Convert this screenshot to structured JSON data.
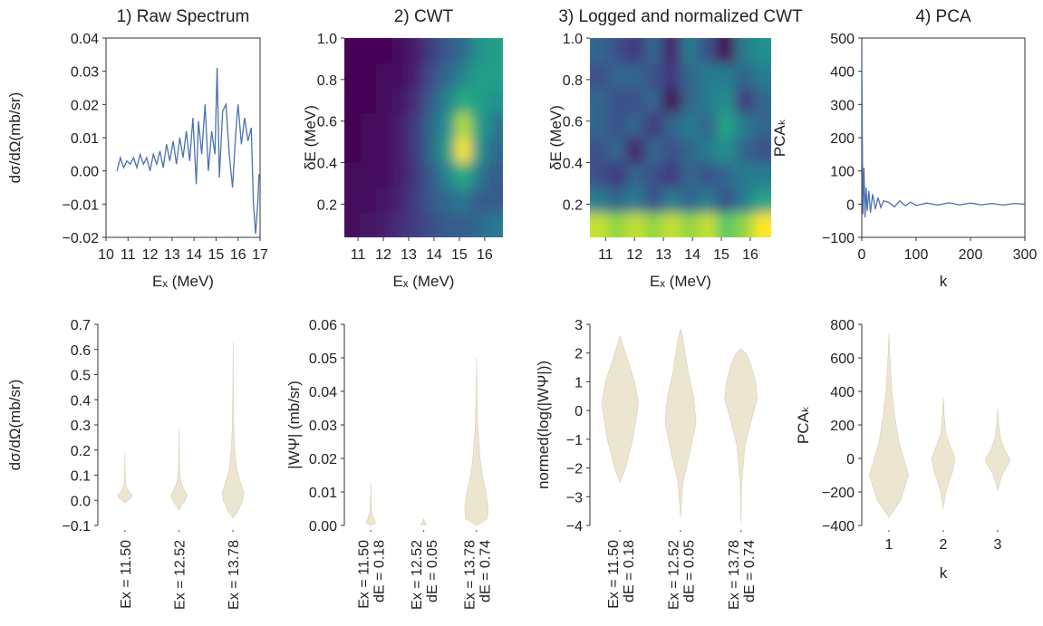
{
  "chart_data": [
    {
      "type": "line",
      "title": "1) Raw Spectrum",
      "xlabel": "Eₓ (MeV)",
      "ylabel": "dσ/dΩ(mb/sr)",
      "color": "#4c72b0",
      "xlim": [
        10,
        17
      ],
      "xticks": [
        10,
        11,
        12,
        13,
        14,
        15,
        16,
        17
      ],
      "ylim": [
        -0.02,
        0.04
      ],
      "yticks": [
        {
          "value": -0.02,
          "label": "−0.02"
        },
        {
          "value": -0.01,
          "label": "−0.01"
        },
        {
          "value": 0,
          "label": "0.00"
        },
        0.01,
        0.02,
        0.03,
        0.04
      ],
      "x": [
        10.5,
        10.65,
        10.8,
        10.95,
        11.1,
        11.25,
        11.4,
        11.55,
        11.7,
        11.85,
        12.0,
        12.15,
        12.3,
        12.45,
        12.6,
        12.75,
        12.9,
        13.05,
        13.2,
        13.35,
        13.5,
        13.65,
        13.8,
        13.95,
        14.1,
        14.2,
        14.35,
        14.5,
        14.65,
        14.8,
        14.95,
        15.05,
        15.15,
        15.3,
        15.45,
        15.6,
        15.75,
        15.9,
        16.0,
        16.15,
        16.3,
        16.45,
        16.6,
        16.7,
        16.8,
        16.9,
        16.95
      ],
      "values": [
        0.0,
        0.004,
        0.001,
        0.003,
        0.002,
        0.004,
        0.001,
        0.005,
        0.002,
        0.004,
        0.0,
        0.005,
        0.002,
        0.006,
        0.001,
        0.008,
        0.003,
        0.009,
        0.002,
        0.01,
        0.004,
        0.012,
        0.003,
        0.016,
        -0.004,
        0.015,
        0.005,
        0.02,
        0.0,
        0.012,
        0.005,
        0.031,
        -0.002,
        0.018,
        0.02,
        0.005,
        -0.005,
        0.012,
        0.02,
        0.008,
        0.016,
        0.009,
        0.013,
        -0.01,
        -0.019,
        -0.009,
        -0.001
      ]
    },
    {
      "type": "heatmap",
      "title": "2) CWT",
      "xlabel": "Eₓ (MeV)",
      "ylabel": "δE (MeV)",
      "colormap": "viridis",
      "xlim": [
        10.46,
        16.72
      ],
      "xticks": [
        11,
        12,
        13,
        14,
        15,
        16
      ],
      "ylim": [
        0.04,
        1.0
      ],
      "yticks": [
        0.2,
        0.4,
        0.6,
        0.8,
        {
          "value": 1.0,
          "label": "1.0"
        }
      ],
      "z": [
        [
          0.05,
          0.08,
          0.1,
          0.15,
          0.2,
          0.25,
          0.3,
          0.3,
          0.35,
          0.4
        ],
        [
          0.05,
          0.06,
          0.08,
          0.12,
          0.2,
          0.3,
          0.35,
          0.4,
          0.3,
          0.3
        ],
        [
          0.05,
          0.05,
          0.07,
          0.1,
          0.18,
          0.3,
          0.45,
          0.6,
          0.4,
          0.3
        ],
        [
          0.04,
          0.05,
          0.06,
          0.1,
          0.2,
          0.35,
          0.55,
          0.95,
          0.5,
          0.35
        ],
        [
          0.04,
          0.05,
          0.06,
          0.1,
          0.2,
          0.35,
          0.5,
          0.85,
          0.55,
          0.4
        ],
        [
          0.04,
          0.04,
          0.05,
          0.08,
          0.15,
          0.3,
          0.45,
          0.6,
          0.55,
          0.5
        ],
        [
          0.03,
          0.04,
          0.05,
          0.07,
          0.12,
          0.25,
          0.35,
          0.45,
          0.55,
          0.55
        ],
        [
          0.03,
          0.03,
          0.04,
          0.06,
          0.1,
          0.2,
          0.3,
          0.35,
          0.5,
          0.55
        ]
      ]
    },
    {
      "type": "heatmap",
      "title": "3) Logged and normalized CWT",
      "xlabel": "Eₓ (MeV)",
      "ylabel": "δE (MeV)",
      "colormap": "viridis",
      "xlim": [
        10.46,
        16.72
      ],
      "xticks": [
        11,
        12,
        13,
        14,
        15,
        16
      ],
      "ylim": [
        0.04,
        1.0
      ],
      "yticks": [
        0.2,
        0.4,
        0.6,
        0.8,
        {
          "value": 1.0,
          "label": "1.0"
        }
      ],
      "z": [
        [
          0.9,
          0.85,
          0.9,
          0.85,
          0.9,
          0.85,
          0.9,
          0.8,
          0.85,
          0.95
        ],
        [
          0.6,
          0.55,
          0.6,
          0.5,
          0.6,
          0.55,
          0.6,
          0.5,
          0.6,
          0.7
        ],
        [
          0.5,
          0.45,
          0.55,
          0.5,
          0.45,
          0.55,
          0.5,
          0.55,
          0.6,
          0.6
        ],
        [
          0.5,
          0.55,
          0.4,
          0.55,
          0.5,
          0.55,
          0.6,
          0.65,
          0.55,
          0.5
        ],
        [
          0.55,
          0.5,
          0.55,
          0.45,
          0.55,
          0.6,
          0.55,
          0.7,
          0.6,
          0.55
        ],
        [
          0.55,
          0.5,
          0.5,
          0.55,
          0.35,
          0.55,
          0.6,
          0.65,
          0.45,
          0.55
        ],
        [
          0.5,
          0.55,
          0.55,
          0.5,
          0.45,
          0.55,
          0.6,
          0.6,
          0.55,
          0.6
        ],
        [
          0.55,
          0.5,
          0.45,
          0.55,
          0.4,
          0.6,
          0.5,
          0.35,
          0.6,
          0.65
        ]
      ]
    },
    {
      "type": "line",
      "title": "4) PCA",
      "xlabel": "k",
      "ylabel": "PCAₖ",
      "color": "#4c72b0",
      "xlim": [
        0,
        300
      ],
      "xticks": [
        0,
        100,
        200,
        300
      ],
      "ylim": [
        -100,
        500
      ],
      "yticks": [
        {
          "value": -100,
          "label": "−100"
        },
        0,
        100,
        200,
        300,
        400,
        500
      ],
      "x": [
        0,
        2,
        4,
        6,
        8,
        10,
        13,
        16,
        20,
        25,
        30,
        35,
        40,
        50,
        60,
        70,
        80,
        90,
        100,
        120,
        140,
        160,
        180,
        200,
        220,
        240,
        260,
        280,
        300
      ],
      "values": [
        450,
        -30,
        110,
        -40,
        50,
        -20,
        40,
        -25,
        30,
        -15,
        20,
        -10,
        10,
        5,
        -8,
        10,
        -5,
        6,
        -4,
        3,
        -3,
        4,
        -2,
        3,
        -2,
        2,
        -3,
        2,
        0
      ]
    },
    {
      "type": "violin",
      "ylabel": "dσ/dΩ(mb/sr)",
      "color": "#ece5d0",
      "ylim": [
        -0.1,
        0.7
      ],
      "yticks": [
        {
          "value": -0.1,
          "label": "−0.1"
        },
        {
          "value": 0,
          "label": "0.0"
        },
        0.1,
        0.2,
        0.3,
        0.4,
        0.5,
        0.6,
        0.7
      ],
      "categories": [
        [
          "Ex = 11.50"
        ],
        [
          "Ex = 12.52"
        ],
        [
          "Ex = 13.78"
        ]
      ],
      "violins": [
        {
          "y": [
            -0.01,
            0.0,
            0.01,
            0.02,
            0.03,
            0.05,
            0.08,
            0.12,
            0.19
          ],
          "density": [
            0,
            0.11,
            0.26,
            0.3,
            0.19,
            0.06,
            0.02,
            0.01,
            0
          ]
        },
        {
          "y": [
            -0.04,
            -0.02,
            0.0,
            0.02,
            0.04,
            0.07,
            0.1,
            0.15,
            0.29
          ],
          "density": [
            0,
            0.11,
            0.26,
            0.33,
            0.22,
            0.09,
            0.04,
            0.015,
            0
          ]
        },
        {
          "y": [
            -0.07,
            -0.04,
            0.0,
            0.03,
            0.07,
            0.12,
            0.2,
            0.3,
            0.45,
            0.63
          ],
          "density": [
            0,
            0.22,
            0.4,
            0.45,
            0.31,
            0.16,
            0.07,
            0.03,
            0.01,
            0
          ]
        }
      ]
    },
    {
      "type": "violin",
      "ylabel": "|WΨ| (mb/sr)",
      "color": "#ece5d0",
      "ylim": [
        0,
        0.06
      ],
      "yticks": [
        {
          "value": 0,
          "label": "0.00"
        },
        0.01,
        0.02,
        0.03,
        0.04,
        0.05,
        0.06
      ],
      "categories": [
        [
          "Ex = 11.50",
          "dE = 0.18"
        ],
        [
          "Ex = 12.52",
          "dE = 0.05"
        ],
        [
          "Ex = 13.78",
          "dE = 0.74"
        ]
      ],
      "violins": [
        {
          "y": [
            0,
            0.0005,
            0.001,
            0.002,
            0.004,
            0.008,
            0.013
          ],
          "density": [
            0,
            0.16,
            0.2,
            0.12,
            0.04,
            0.01,
            0
          ]
        },
        {
          "y": [
            0,
            0.0002,
            0.0005,
            0.001,
            0.002
          ],
          "density": [
            0,
            0.12,
            0.12,
            0.03,
            0
          ]
        },
        {
          "y": [
            0,
            0.002,
            0.005,
            0.01,
            0.015,
            0.02,
            0.03,
            0.04,
            0.05
          ],
          "density": [
            0,
            0.45,
            0.5,
            0.4,
            0.25,
            0.15,
            0.05,
            0.015,
            0
          ]
        }
      ]
    },
    {
      "type": "violin",
      "ylabel": "normed(log(|WΨ|))",
      "color": "#ece5d0",
      "ylim": [
        -4,
        3
      ],
      "yticks": [
        {
          "value": -4,
          "label": "−4"
        },
        {
          "value": -3,
          "label": "−3"
        },
        {
          "value": -2,
          "label": "−2"
        },
        {
          "value": -1,
          "label": "−1"
        },
        0,
        1,
        2,
        3
      ],
      "categories": [
        [
          "Ex = 11.50",
          "dE = 0.18"
        ],
        [
          "Ex = 12.52",
          "dE = 0.05"
        ],
        [
          "Ex = 13.78",
          "dE = 0.74"
        ]
      ],
      "violins": [
        {
          "y": [
            -2.5,
            -2,
            -1,
            0,
            0.3,
            1,
            1.7,
            2.2,
            2.6
          ],
          "density": [
            0,
            0.2,
            0.47,
            0.64,
            0.67,
            0.54,
            0.3,
            0.13,
            0
          ]
        },
        {
          "y": [
            -3.7,
            -2.5,
            -1.5,
            -0.4,
            0.5,
            1.3,
            2,
            2.5,
            2.85
          ],
          "density": [
            0,
            0.09,
            0.34,
            0.57,
            0.48,
            0.29,
            0.17,
            0.09,
            0
          ]
        },
        {
          "y": [
            -3.9,
            -2.5,
            -1.2,
            -0.2,
            0.4,
            1,
            1.6,
            2,
            2.15
          ],
          "density": [
            0,
            0.03,
            0.15,
            0.42,
            0.6,
            0.54,
            0.36,
            0.18,
            0
          ]
        }
      ]
    },
    {
      "type": "violin",
      "xlabel": "k",
      "ylabel": "PCAₖ",
      "color": "#ece5d0",
      "ylim": [
        -400,
        800
      ],
      "yticks": [
        {
          "value": -400,
          "label": "−400"
        },
        {
          "value": -200,
          "label": "−200"
        },
        0,
        200,
        400,
        600,
        800
      ],
      "categories": [
        [
          "1"
        ],
        [
          "2"
        ],
        [
          "3"
        ]
      ],
      "violins": [
        {
          "y": [
            -350,
            -250,
            -100,
            0,
            100,
            250,
            400,
            600,
            740
          ],
          "density": [
            0,
            0.48,
            0.8,
            0.6,
            0.4,
            0.24,
            0.12,
            0.04,
            0
          ]
        },
        {
          "y": [
            -300,
            -200,
            -80,
            0,
            80,
            150,
            250,
            360
          ],
          "density": [
            0,
            0.1,
            0.37,
            0.48,
            0.27,
            0.1,
            0.04,
            0
          ]
        },
        {
          "y": [
            -190,
            -100,
            -30,
            0,
            50,
            120,
            200,
            300
          ],
          "density": [
            0,
            0.17,
            0.45,
            0.5,
            0.28,
            0.11,
            0.04,
            0
          ]
        }
      ]
    }
  ]
}
